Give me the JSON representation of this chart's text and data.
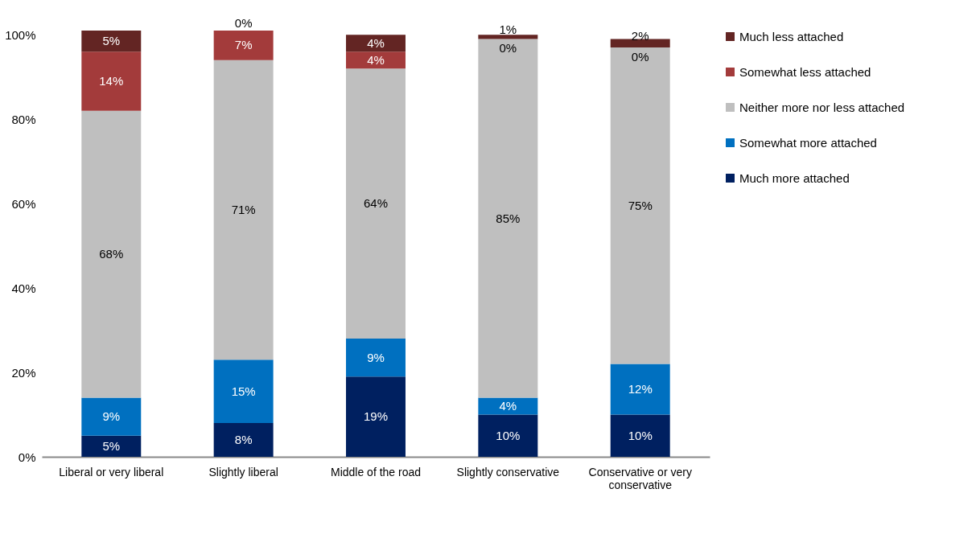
{
  "chart_data": {
    "type": "bar",
    "stacked": true,
    "categories": [
      "Liberal or very liberal",
      "Slightly liberal",
      "Middle of the road",
      "Slightly conservative",
      "Conservative or very conservative"
    ],
    "series": [
      {
        "name": "Much more attached",
        "color": "#002060",
        "values": [
          5,
          8,
          19,
          10,
          10
        ],
        "value_labels": [
          "5%",
          "8%",
          "19%",
          "10%",
          "10%"
        ]
      },
      {
        "name": "Somewhat more attached",
        "color": "#0070c0",
        "values": [
          9,
          15,
          9,
          4,
          12
        ],
        "value_labels": [
          "9%",
          "15%",
          "9%",
          "4%",
          "12%"
        ]
      },
      {
        "name": "Neither more nor less attached",
        "color": "#bfbfbf",
        "values": [
          68,
          71,
          64,
          85,
          75
        ],
        "value_labels": [
          "68%",
          "71%",
          "64%",
          "85%",
          "75%"
        ]
      },
      {
        "name": "Somewhat less attached",
        "color": "#a33b3b",
        "values": [
          14,
          7,
          4,
          0,
          0
        ],
        "value_labels": [
          "14%",
          "7%",
          "4%",
          "0%",
          "0%"
        ]
      },
      {
        "name": "Much less attached",
        "color": "#632523",
        "values": [
          5,
          0,
          4,
          1,
          2
        ],
        "value_labels": [
          "5%",
          "0%",
          "4%",
          "1%",
          "2%"
        ]
      }
    ],
    "ylim": [
      0,
      101
    ],
    "yticks": [
      {
        "value": 0,
        "label": "0%"
      },
      {
        "value": 20,
        "label": "20%"
      },
      {
        "value": 40,
        "label": "40%"
      },
      {
        "value": 60,
        "label": "60%"
      },
      {
        "value": 80,
        "label": "80%"
      },
      {
        "value": 100,
        "label": "100%"
      }
    ],
    "grid": false,
    "legend": "right"
  }
}
